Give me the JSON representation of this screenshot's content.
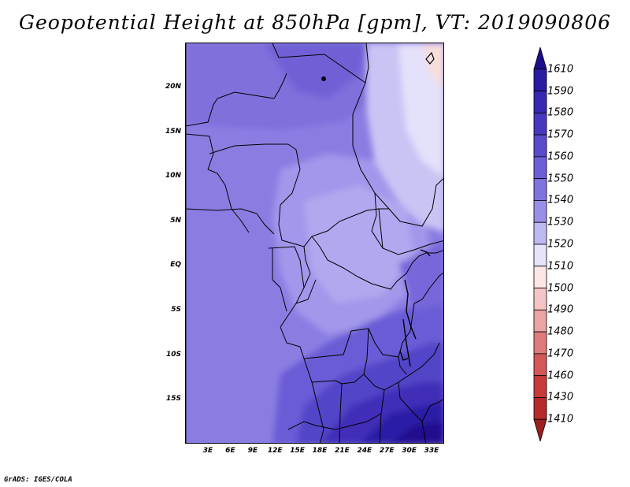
{
  "title": "Geopotential Height at 850hPa [gpm], VT: 2019090806",
  "credit": "GrADS: IGES/COLA",
  "y_axis": [
    "20N",
    "15N",
    "10N",
    "5N",
    "EQ",
    "5S",
    "10S",
    "15S"
  ],
  "x_axis": [
    "3E",
    "6E",
    "9E",
    "12E",
    "15E",
    "18E",
    "21E",
    "24E",
    "27E",
    "30E",
    "33E"
  ],
  "colorbar": {
    "labels": [
      "1610",
      "1590",
      "1580",
      "1570",
      "1560",
      "1550",
      "1540",
      "1530",
      "1520",
      "1510",
      "1500",
      "1490",
      "1480",
      "1470",
      "1460",
      "1430",
      "1410"
    ],
    "colors": [
      "#1c0d8c",
      "#2a1ba3",
      "#3829b3",
      "#4838c0",
      "#5a4bcc",
      "#6d5ed8",
      "#8072df",
      "#9a8fe8",
      "#bfb9f2",
      "#e6e4fb",
      "#fde6e6",
      "#f5c5c5",
      "#eca3a3",
      "#e07b7b",
      "#d45858",
      "#c73b3b",
      "#b52a2a",
      "#9c1e1e"
    ]
  }
}
